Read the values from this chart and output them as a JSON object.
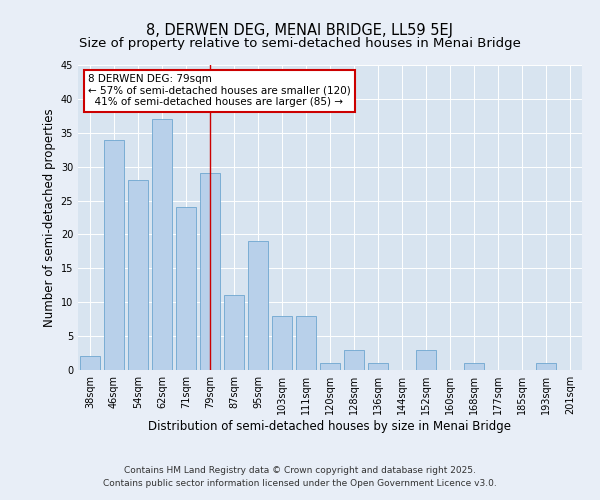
{
  "title": "8, DERWEN DEG, MENAI BRIDGE, LL59 5EJ",
  "subtitle": "Size of property relative to semi-detached houses in Menai Bridge",
  "xlabel": "Distribution of semi-detached houses by size in Menai Bridge",
  "ylabel": "Number of semi-detached properties",
  "categories": [
    "38sqm",
    "46sqm",
    "54sqm",
    "62sqm",
    "71sqm",
    "79sqm",
    "87sqm",
    "95sqm",
    "103sqm",
    "111sqm",
    "120sqm",
    "128sqm",
    "136sqm",
    "144sqm",
    "152sqm",
    "160sqm",
    "168sqm",
    "177sqm",
    "185sqm",
    "193sqm",
    "201sqm"
  ],
  "values": [
    2,
    34,
    28,
    37,
    24,
    29,
    11,
    19,
    8,
    8,
    1,
    3,
    1,
    0,
    3,
    0,
    1,
    0,
    0,
    1,
    0
  ],
  "bar_color": "#b8d0ea",
  "bar_edge_color": "#6ea6d0",
  "highlight_index": 5,
  "highlight_line_color": "#cc0000",
  "annotation_line1": "8 DERWEN DEG: 79sqm",
  "annotation_line2": "← 57% of semi-detached houses are smaller (120)",
  "annotation_line3": "  41% of semi-detached houses are larger (85) →",
  "annotation_box_color": "#ffffff",
  "annotation_box_edge_color": "#cc0000",
  "ylim": [
    0,
    45
  ],
  "yticks": [
    0,
    5,
    10,
    15,
    20,
    25,
    30,
    35,
    40,
    45
  ],
  "background_color": "#e8eef7",
  "plot_bg_color": "#d8e4f0",
  "footer_line1": "Contains HM Land Registry data © Crown copyright and database right 2025.",
  "footer_line2": "Contains public sector information licensed under the Open Government Licence v3.0.",
  "title_fontsize": 10.5,
  "subtitle_fontsize": 9.5,
  "axis_label_fontsize": 8.5,
  "tick_fontsize": 7,
  "annotation_fontsize": 7.5,
  "footer_fontsize": 6.5
}
